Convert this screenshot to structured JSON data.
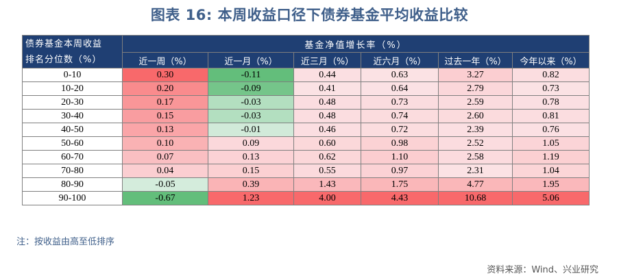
{
  "title": "图表 16: 本周收益口径下债券基金平均收益比较",
  "table": {
    "corner_line1": "债券基金本周收益",
    "corner_line2": "排名分位数（%）",
    "group_header": "基金净值增长率（%）",
    "columns": [
      "近一周（%）",
      "近一月（%）",
      "近三月（%）",
      "近六月（%）",
      "过去一年（%）",
      "今年以来（%）"
    ],
    "rows": [
      {
        "rank": "0-10",
        "values": [
          "0.30",
          "-0.11",
          "0.44",
          "0.63",
          "3.27",
          "0.82"
        ]
      },
      {
        "rank": "10-20",
        "values": [
          "0.20",
          "-0.09",
          "0.41",
          "0.64",
          "2.79",
          "0.73"
        ]
      },
      {
        "rank": "20-30",
        "values": [
          "0.17",
          "-0.03",
          "0.48",
          "0.73",
          "2.59",
          "0.78"
        ]
      },
      {
        "rank": "30-40",
        "values": [
          "0.15",
          "-0.03",
          "0.48",
          "0.74",
          "2.60",
          "0.81"
        ]
      },
      {
        "rank": "40-50",
        "values": [
          "0.13",
          "-0.01",
          "0.46",
          "0.72",
          "2.39",
          "0.76"
        ]
      },
      {
        "rank": "50-60",
        "values": [
          "0.10",
          "0.09",
          "0.60",
          "0.98",
          "2.52",
          "1.05"
        ]
      },
      {
        "rank": "60-70",
        "values": [
          "0.07",
          "0.13",
          "0.62",
          "1.10",
          "2.58",
          "1.19"
        ]
      },
      {
        "rank": "70-80",
        "values": [
          "0.04",
          "0.15",
          "0.55",
          "0.97",
          "2.31",
          "1.04"
        ]
      },
      {
        "rank": "80-90",
        "values": [
          "-0.05",
          "0.39",
          "1.43",
          "1.75",
          "4.77",
          "1.95"
        ]
      },
      {
        "rank": "90-100",
        "values": [
          "-0.67",
          "1.23",
          "4.00",
          "4.43",
          "10.68",
          "5.06"
        ]
      }
    ]
  },
  "colors": {
    "header_bg": "#1f3f73",
    "title": "#3f5f8a",
    "positive_max": "#f8696b",
    "negative_max": "#63be7b",
    "neutral": "#fcfcff"
  },
  "note": "注：按收益由高至低排序",
  "source": "资料来源：Wind、兴业研究"
}
